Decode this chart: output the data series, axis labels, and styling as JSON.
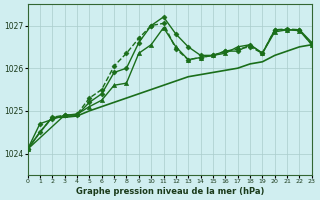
{
  "title": "Graphe pression niveau de la mer (hPa)",
  "bg_color": "#d0eef0",
  "grid_color": "#aacccc",
  "line_color": "#1a6e1a",
  "marker_color": "#1a6e1a",
  "xlim": [
    0,
    23
  ],
  "ylim": [
    1023.5,
    1027.5
  ],
  "yticks": [
    1024,
    1025,
    1026,
    1027
  ],
  "xticks": [
    0,
    1,
    2,
    3,
    4,
    5,
    6,
    7,
    8,
    9,
    10,
    11,
    12,
    13,
    14,
    15,
    16,
    17,
    18,
    19,
    20,
    21,
    22,
    23
  ],
  "series": [
    {
      "x": [
        0,
        1,
        2,
        3,
        4,
        5,
        6,
        7,
        8,
        9,
        10,
        11,
        12,
        13,
        14,
        15,
        16,
        17,
        18,
        19,
        20,
        21,
        22,
        23
      ],
      "y": [
        1024.1,
        1024.7,
        1024.8,
        1024.9,
        1024.9,
        1025.2,
        1025.4,
        1025.9,
        1026.0,
        1026.6,
        1027.0,
        1027.2,
        1026.8,
        1026.5,
        1026.3,
        1026.3,
        1026.4,
        1026.4,
        1026.55,
        1026.35,
        1026.9,
        1026.9,
        1026.9,
        1026.6
      ],
      "linestyle": "-",
      "marker": "D",
      "markersize": 2.5,
      "linewidth": 1.0
    },
    {
      "x": [
        0,
        1,
        2,
        3,
        4,
        5,
        6,
        7,
        8,
        9,
        10,
        11,
        12,
        13,
        14,
        15,
        16,
        17,
        18,
        19,
        20,
        21,
        22,
        23
      ],
      "y": [
        1024.1,
        1024.5,
        1024.85,
        1024.9,
        1024.92,
        1025.3,
        1025.5,
        1026.05,
        1026.35,
        1026.7,
        1027.0,
        1027.05,
        1026.45,
        1026.2,
        1026.25,
        1026.3,
        1026.4,
        1026.45,
        1026.5,
        1026.35,
        1026.9,
        1026.92,
        1026.9,
        1026.55
      ],
      "linestyle": "--",
      "marker": "D",
      "markersize": 2.5,
      "linewidth": 1.0
    },
    {
      "x": [
        0,
        3,
        4,
        5,
        6,
        7,
        8,
        9,
        10,
        11,
        12,
        13,
        14,
        15,
        16,
        17,
        18,
        19,
        20,
        21,
        22,
        23
      ],
      "y": [
        1024.1,
        1024.9,
        1024.92,
        1025.1,
        1025.25,
        1025.6,
        1025.65,
        1026.35,
        1026.55,
        1026.95,
        1026.5,
        1026.2,
        1026.25,
        1026.3,
        1026.35,
        1026.5,
        1026.55,
        1026.35,
        1026.85,
        1026.9,
        1026.88,
        1026.55
      ],
      "linestyle": "-",
      "marker": "^",
      "markersize": 3.0,
      "linewidth": 1.0
    },
    {
      "x": [
        0,
        1,
        2,
        3,
        4,
        5,
        6,
        7,
        8,
        9,
        10,
        11,
        12,
        13,
        14,
        15,
        16,
        17,
        18,
        19,
        20,
        21,
        22,
        23
      ],
      "y": [
        1024.1,
        1024.5,
        1024.85,
        1024.85,
        1024.88,
        1025.0,
        1025.1,
        1025.2,
        1025.3,
        1025.4,
        1025.5,
        1025.6,
        1025.7,
        1025.8,
        1025.85,
        1025.9,
        1025.95,
        1026.0,
        1026.1,
        1026.15,
        1026.3,
        1026.4,
        1026.5,
        1026.55
      ],
      "linestyle": "-",
      "marker": null,
      "markersize": 0,
      "linewidth": 1.2
    }
  ]
}
